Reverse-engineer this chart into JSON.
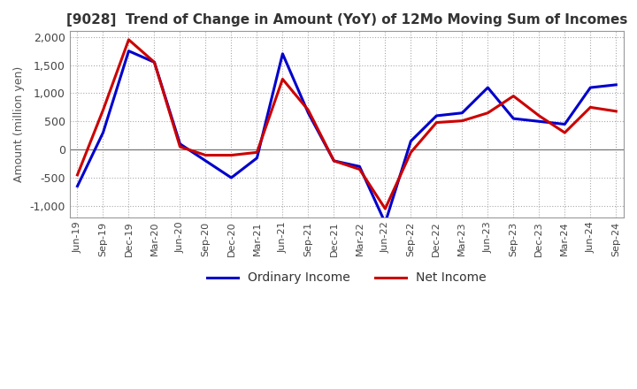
{
  "title": "[9028]  Trend of Change in Amount (YoY) of 12Mo Moving Sum of Incomes",
  "ylabel": "Amount (million yen)",
  "ylim": [
    -1200,
    2100
  ],
  "yticks": [
    -1000,
    -500,
    0,
    500,
    1000,
    1500,
    2000
  ],
  "background_color": "#ffffff",
  "grid_color": "#aaaaaa",
  "ordinary_income_color": "#0000cc",
  "net_income_color": "#cc0000",
  "line_width": 2.2,
  "dates": [
    "Jun-19",
    "Sep-19",
    "Dec-19",
    "Mar-20",
    "Jun-20",
    "Sep-20",
    "Dec-20",
    "Mar-21",
    "Jun-21",
    "Sep-21",
    "Dec-21",
    "Mar-22",
    "Jun-22",
    "Sep-22",
    "Dec-22",
    "Mar-23",
    "Jun-23",
    "Sep-23",
    "Dec-23",
    "Mar-24",
    "Jun-24",
    "Sep-24"
  ],
  "ordinary_income": [
    -650,
    300,
    1750,
    1550,
    100,
    -200,
    -500,
    -150,
    1700,
    650,
    -200,
    -300,
    -1300,
    150,
    600,
    650,
    1100,
    550,
    500,
    450,
    1100,
    1150
  ],
  "net_income": [
    -450,
    700,
    1950,
    1550,
    50,
    -100,
    -100,
    -50,
    1250,
    700,
    -200,
    -350,
    -1050,
    -50,
    480,
    510,
    650,
    950,
    600,
    300,
    750,
    680
  ]
}
